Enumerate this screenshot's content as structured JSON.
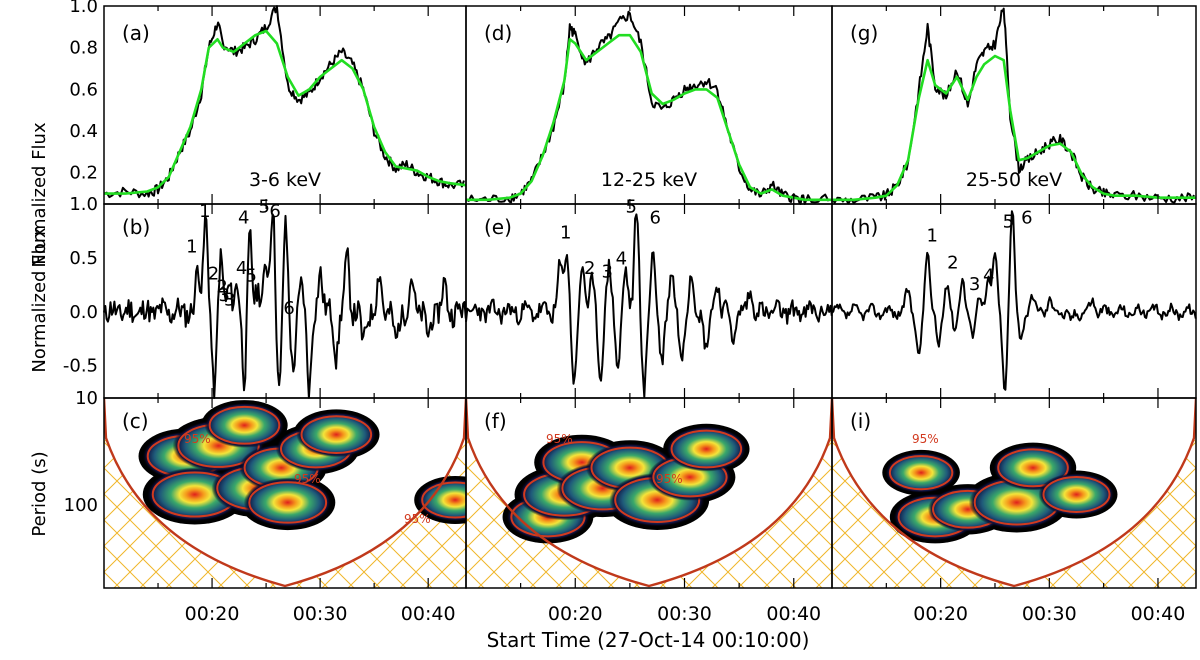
{
  "figure": {
    "xlabel": "Start Time (27-Oct-14 00:10:00)",
    "row_labels": [
      "Normalized Flux",
      "Normalized Flux",
      "Period (s)"
    ]
  },
  "colors": {
    "raw": "#000000",
    "smooth": "#22dd22",
    "coi": "#c0391b",
    "hatch": "#f0b62a",
    "contour": "#d23a1f"
  },
  "chart_data": [
    {
      "type": "line",
      "panel": "(a)",
      "energy_label": "3-6 keV",
      "x_unit": "minutes after 00:10:00",
      "xlim": [
        0,
        33.5
      ],
      "xticks": [
        {
          "v": 10,
          "label": "00:20"
        },
        {
          "v": 20,
          "label": "00:30"
        },
        {
          "v": 30,
          "label": "00:40"
        }
      ],
      "ylim": [
        0.05,
        1.0
      ],
      "yticks": [
        0.2,
        0.4,
        0.6,
        0.8,
        1.0
      ],
      "series": [
        {
          "role": "raw",
          "x": [
            0,
            2,
            4,
            5,
            6,
            7,
            8,
            9,
            9.7,
            10.5,
            11,
            12,
            13,
            14,
            15,
            16,
            17,
            18,
            19,
            20,
            21,
            22,
            23,
            24,
            25,
            26,
            27,
            28,
            29,
            30,
            31,
            32,
            33.5
          ],
          "y": [
            0.1,
            0.11,
            0.1,
            0.12,
            0.18,
            0.3,
            0.4,
            0.58,
            0.8,
            0.92,
            0.82,
            0.78,
            0.8,
            0.84,
            0.9,
            1.0,
            0.62,
            0.55,
            0.58,
            0.66,
            0.72,
            0.78,
            0.72,
            0.6,
            0.4,
            0.28,
            0.22,
            0.24,
            0.2,
            0.18,
            0.16,
            0.14,
            0.14
          ]
        },
        {
          "role": "smooth",
          "x": [
            0,
            2,
            4,
            5,
            6,
            7,
            8,
            9,
            9.7,
            10.5,
            11,
            12,
            13,
            14,
            15,
            16,
            17,
            18,
            19,
            20,
            21,
            22,
            23,
            24,
            25,
            26,
            27,
            28,
            29,
            30,
            31,
            32,
            33.5
          ],
          "y": [
            0.1,
            0.1,
            0.11,
            0.13,
            0.18,
            0.3,
            0.42,
            0.6,
            0.8,
            0.84,
            0.8,
            0.78,
            0.82,
            0.86,
            0.88,
            0.82,
            0.66,
            0.57,
            0.6,
            0.66,
            0.7,
            0.74,
            0.7,
            0.6,
            0.42,
            0.3,
            0.23,
            0.22,
            0.21,
            0.18,
            0.16,
            0.15,
            0.14
          ]
        }
      ]
    },
    {
      "type": "line",
      "panel": "(d)",
      "energy_label": "12-25 keV",
      "x_unit": "minutes after 00:10:00",
      "xlim": [
        0,
        33.5
      ],
      "xticks": [
        {
          "v": 10,
          "label": "00:20"
        },
        {
          "v": 20,
          "label": "00:30"
        },
        {
          "v": 30,
          "label": "00:40"
        }
      ],
      "ylim": [
        0.05,
        1.0
      ],
      "series": [
        {
          "role": "raw",
          "x": [
            0,
            2,
            4,
            5,
            6,
            7,
            8,
            9,
            9.5,
            10,
            11,
            12,
            13,
            14,
            15,
            16,
            17,
            18,
            19,
            20,
            21,
            22,
            23,
            24,
            25,
            26,
            27,
            28,
            29,
            30,
            31,
            33.5
          ],
          "y": [
            0.07,
            0.07,
            0.08,
            0.1,
            0.16,
            0.28,
            0.42,
            0.62,
            0.9,
            0.86,
            0.72,
            0.8,
            0.84,
            0.92,
            0.96,
            0.82,
            0.54,
            0.5,
            0.55,
            0.6,
            0.62,
            0.64,
            0.6,
            0.4,
            0.22,
            0.12,
            0.09,
            0.14,
            0.09,
            0.08,
            0.07,
            0.07
          ]
        },
        {
          "role": "smooth",
          "x": [
            0,
            2,
            4,
            5,
            6,
            7,
            8,
            9,
            9.5,
            10,
            11,
            12,
            13,
            14,
            15,
            16,
            17,
            18,
            19,
            20,
            21,
            22,
            23,
            24,
            25,
            26,
            27,
            28,
            29,
            30,
            31,
            33.5
          ],
          "y": [
            0.07,
            0.07,
            0.08,
            0.1,
            0.16,
            0.28,
            0.44,
            0.64,
            0.84,
            0.82,
            0.74,
            0.78,
            0.82,
            0.86,
            0.86,
            0.78,
            0.58,
            0.53,
            0.55,
            0.58,
            0.6,
            0.6,
            0.56,
            0.4,
            0.24,
            0.13,
            0.1,
            0.12,
            0.09,
            0.08,
            0.07,
            0.07
          ]
        }
      ]
    },
    {
      "type": "line",
      "panel": "(g)",
      "energy_label": "25-50 keV",
      "x_unit": "minutes after 00:10:00",
      "xlim": [
        0,
        33.5
      ],
      "xticks": [
        {
          "v": 10,
          "label": "00:20"
        },
        {
          "v": 20,
          "label": "00:30"
        },
        {
          "v": 30,
          "label": "00:40"
        }
      ],
      "ylim": [
        0.05,
        1.0
      ],
      "series": [
        {
          "role": "raw",
          "x": [
            0,
            2,
            4,
            5,
            6,
            7,
            8,
            8.8,
            9.5,
            10.5,
            11.5,
            12.5,
            13.3,
            14,
            15,
            15.8,
            16.4,
            17.2,
            18,
            19,
            20,
            21,
            22,
            23,
            24,
            25,
            26,
            28,
            30,
            32,
            33.5
          ],
          "y": [
            0.07,
            0.07,
            0.08,
            0.09,
            0.14,
            0.25,
            0.6,
            0.9,
            0.62,
            0.56,
            0.7,
            0.52,
            0.72,
            0.78,
            0.82,
            1.0,
            0.48,
            0.22,
            0.26,
            0.3,
            0.34,
            0.36,
            0.3,
            0.18,
            0.12,
            0.1,
            0.09,
            0.09,
            0.08,
            0.08,
            0.08
          ]
        },
        {
          "role": "smooth",
          "x": [
            0,
            2,
            4,
            5,
            6,
            7,
            8,
            8.8,
            9.5,
            10.5,
            11.5,
            12.5,
            13.3,
            14,
            15,
            15.8,
            16.4,
            17.2,
            18,
            19,
            20,
            21,
            22,
            23,
            24,
            25,
            26,
            28,
            30,
            32,
            33.5
          ],
          "y": [
            0.07,
            0.07,
            0.08,
            0.09,
            0.14,
            0.26,
            0.56,
            0.74,
            0.62,
            0.58,
            0.66,
            0.55,
            0.66,
            0.72,
            0.76,
            0.74,
            0.5,
            0.26,
            0.27,
            0.3,
            0.33,
            0.34,
            0.3,
            0.19,
            0.13,
            0.1,
            0.09,
            0.09,
            0.08,
            0.08,
            0.08
          ]
        }
      ]
    },
    {
      "type": "line",
      "panel": "(b)",
      "xlim": [
        0,
        33.5
      ],
      "ylim": [
        -0.8,
        1.0
      ],
      "yticks": [
        -0.5,
        0.0,
        0.5,
        1.0
      ],
      "series": [
        {
          "role": "detrended",
          "seed": 11,
          "amp": 0.22,
          "peaks": [
            [
              8.7,
              0.4
            ],
            [
              9.4,
              0.9
            ],
            [
              10.2,
              -0.8
            ],
            [
              10.8,
              0.55
            ],
            [
              11.6,
              0.2
            ],
            [
              12.3,
              0.3
            ],
            [
              13.0,
              -0.7
            ],
            [
              13.5,
              0.75
            ],
            [
              14.2,
              0.2
            ],
            [
              15.0,
              0.45
            ],
            [
              15.6,
              1.0
            ],
            [
              16.2,
              -0.8
            ],
            [
              16.8,
              0.85
            ],
            [
              17.5,
              -0.6
            ],
            [
              18.3,
              0.3
            ],
            [
              19.0,
              -0.75
            ],
            [
              20.0,
              0.4
            ],
            [
              21.5,
              -0.4
            ],
            [
              22.5,
              0.5
            ],
            [
              24.0,
              -0.3
            ],
            [
              25.5,
              0.35
            ],
            [
              27.0,
              -0.3
            ],
            [
              28.5,
              0.3
            ],
            [
              30.0,
              -0.25
            ],
            [
              31.5,
              0.25
            ]
          ]
        }
      ],
      "labels": [
        "1",
        "1",
        "2",
        "2",
        "3",
        "3",
        "4",
        "4",
        "5",
        "5",
        "6",
        "6"
      ]
    },
    {
      "type": "line",
      "panel": "(e)",
      "xlim": [
        0,
        33.5
      ],
      "ylim": [
        -0.8,
        1.0
      ],
      "series": [
        {
          "role": "detrended",
          "seed": 23,
          "amp": 0.16,
          "peaks": [
            [
              8.6,
              0.4
            ],
            [
              9.2,
              0.6
            ],
            [
              9.9,
              -0.7
            ],
            [
              10.7,
              0.45
            ],
            [
              11.5,
              0.25
            ],
            [
              12.3,
              -0.6
            ],
            [
              13.1,
              0.4
            ],
            [
              13.9,
              -0.5
            ],
            [
              14.6,
              0.35
            ],
            [
              15.6,
              1.0
            ],
            [
              16.3,
              -0.8
            ],
            [
              17.1,
              0.6
            ],
            [
              17.9,
              -0.5
            ],
            [
              18.8,
              0.4
            ],
            [
              19.7,
              -0.45
            ],
            [
              20.6,
              0.35
            ],
            [
              22.0,
              -0.35
            ],
            [
              23.0,
              0.3
            ],
            [
              24.5,
              -0.25
            ],
            [
              26.0,
              0.2
            ]
          ]
        }
      ],
      "labels": [
        "1",
        "2",
        "3",
        "4",
        "5",
        "6"
      ]
    },
    {
      "type": "line",
      "panel": "(h)",
      "xlim": [
        0,
        33.5
      ],
      "ylim": [
        -0.8,
        1.0
      ],
      "series": [
        {
          "role": "detrended",
          "seed": 37,
          "amp": 0.08,
          "peaks": [
            [
              7.0,
              0.2
            ],
            [
              8.0,
              -0.45
            ],
            [
              8.8,
              0.6
            ],
            [
              9.8,
              -0.35
            ],
            [
              10.6,
              0.3
            ],
            [
              11.3,
              -0.2
            ],
            [
              12.0,
              0.35
            ],
            [
              12.9,
              -0.25
            ],
            [
              13.6,
              0.2
            ],
            [
              14.4,
              0.25
            ],
            [
              15.0,
              0.6
            ],
            [
              15.9,
              -0.8
            ],
            [
              16.6,
              1.0
            ],
            [
              17.4,
              -0.3
            ],
            [
              18.4,
              0.15
            ],
            [
              20.0,
              0.12
            ],
            [
              22.0,
              -0.1
            ],
            [
              24.0,
              0.12
            ]
          ]
        }
      ],
      "labels": [
        "1",
        "2",
        "3",
        "4",
        "5",
        "6"
      ]
    },
    {
      "type": "heatmap",
      "panel": "(c)",
      "xlim": [
        0,
        33.5
      ],
      "ylabel": "Period (s)",
      "yscale": "log",
      "ylim": [
        10,
        600
      ],
      "yticks": [
        10,
        100
      ],
      "contour_labels": [
        "95%",
        "95%",
        "95%"
      ],
      "blobs": [
        [
          7.6,
          35,
          0.8
        ],
        [
          8.4,
          80,
          1.0
        ],
        [
          10.6,
          28,
          0.9
        ],
        [
          13.0,
          18,
          0.6
        ],
        [
          14.2,
          70,
          0.9
        ],
        [
          16.4,
          45,
          0.7
        ],
        [
          17.0,
          95,
          0.8
        ],
        [
          19.6,
          30,
          0.6
        ],
        [
          21.5,
          22,
          0.6
        ],
        [
          32.5,
          90,
          0.5
        ]
      ]
    },
    {
      "type": "heatmap",
      "panel": "(f)",
      "xlim": [
        0,
        33.5
      ],
      "yscale": "log",
      "ylim": [
        10,
        600
      ],
      "contour_labels": [
        "95%",
        "95%"
      ],
      "blobs": [
        [
          7.5,
          130,
          0.7
        ],
        [
          9.0,
          80,
          0.9
        ],
        [
          10.6,
          40,
          0.8
        ],
        [
          12.5,
          70,
          0.9
        ],
        [
          15.0,
          45,
          0.8
        ],
        [
          17.5,
          90,
          1.0
        ],
        [
          20.5,
          55,
          0.7
        ],
        [
          22.0,
          30,
          0.6
        ]
      ]
    },
    {
      "type": "heatmap",
      "panel": "(i)",
      "xlim": [
        0,
        33.5
      ],
      "yscale": "log",
      "ylim": [
        10,
        600
      ],
      "contour_labels": [
        "95%"
      ],
      "blobs": [
        [
          9.5,
          130,
          0.7
        ],
        [
          12.5,
          110,
          0.6
        ],
        [
          17.0,
          95,
          1.0
        ],
        [
          18.5,
          45,
          0.6
        ],
        [
          22.5,
          80,
          0.5
        ],
        [
          8.2,
          50,
          0.4
        ]
      ]
    }
  ]
}
